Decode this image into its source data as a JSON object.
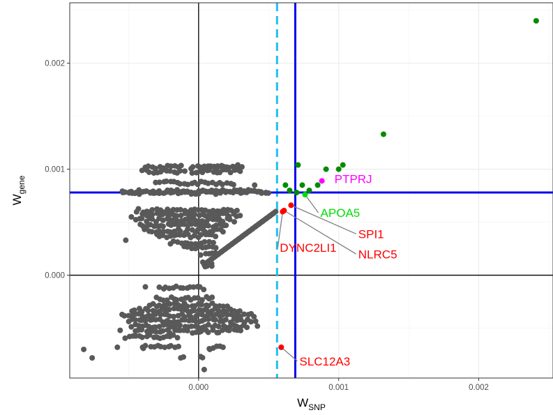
{
  "chart_data": {
    "type": "scatter",
    "title": "",
    "xlabel": {
      "main": "W",
      "sub": "SNP"
    },
    "ylabel": {
      "main": "W",
      "sub": "gene"
    },
    "xlim": [
      -0.00092,
      0.00253
    ],
    "ylim": [
      -0.00097,
      0.00257
    ],
    "x_ticks": [
      {
        "value": 0.0,
        "label": "0.000"
      },
      {
        "value": 0.001,
        "label": "0.001"
      },
      {
        "value": 0.002,
        "label": "0.002"
      }
    ],
    "y_ticks": [
      {
        "value": 0.0,
        "label": "0.000"
      },
      {
        "value": 0.001,
        "label": "0.001"
      },
      {
        "value": 0.002,
        "label": "0.002"
      }
    ],
    "grid": true,
    "reference_lines": [
      {
        "orientation": "vertical",
        "value": 0.0,
        "color": "#000000",
        "style": "solid"
      },
      {
        "orientation": "horizontal",
        "value": 0.0,
        "color": "#000000",
        "style": "solid"
      },
      {
        "orientation": "vertical",
        "value": 0.00056,
        "color": "#1fbfee",
        "style": "dashed"
      },
      {
        "orientation": "vertical",
        "value": 0.00069,
        "color": "#0000ee",
        "style": "solid"
      },
      {
        "orientation": "horizontal",
        "value": 0.00078,
        "color": "#0000ee",
        "style": "solid"
      }
    ],
    "background_cloud": {
      "color": "#595959",
      "note_counts": "dense cluster of gene points",
      "bands": [
        {
          "y": 0.00102,
          "x_ranges": [
            [
              -0.00038,
              -0.00012
            ],
            [
              -6e-05,
              0.00016
            ],
            [
              2e-05,
              0.00031
            ]
          ]
        },
        {
          "y": 0.00098,
          "x_ranges": [
            [
              -0.0004,
              -0.0001
            ],
            [
              -4e-05,
              0.0003
            ]
          ]
        },
        {
          "y": 0.00087,
          "x_ranges": [
            [
              -0.0003,
              0.00025
            ]
          ]
        },
        {
          "y": 0.00079,
          "x_ranges": [
            [
              -0.00055,
              0.0005
            ]
          ]
        },
        {
          "y": 0.00078,
          "x_ranges": [
            [
              -0.0005,
              0.00045
            ]
          ]
        },
        {
          "y": 0.00061,
          "x_ranges": [
            [
              -0.00045,
              0.00028
            ]
          ]
        },
        {
          "y": 0.00057,
          "x_ranges": [
            [
              -0.0004,
              0.0003
            ]
          ]
        },
        {
          "y": 0.00052,
          "x_ranges": [
            [
              -0.00045,
              0.00025
            ]
          ]
        },
        {
          "y": 0.00047,
          "x_ranges": [
            [
              -0.00042,
              0.0002
            ]
          ]
        },
        {
          "y": 0.00042,
          "x_ranges": [
            [
              -0.00038,
              0.00018
            ]
          ]
        },
        {
          "y": 0.00037,
          "x_ranges": [
            [
              -0.0003,
              0.00012
            ]
          ]
        },
        {
          "y": 0.00031,
          "x_ranges": [
            [
              -0.0002,
              0.0001
            ]
          ]
        },
        {
          "y": 0.00026,
          "x_ranges": [
            [
              -0.0001,
              0.00012
            ]
          ]
        },
        {
          "y": 0.0002,
          "x_ranges": [
            [
              2e-05,
              0.00012
            ]
          ]
        },
        {
          "y": 0.00012,
          "x_ranges": [
            [
              3e-05,
              0.0001
            ]
          ]
        },
        {
          "y": 7e-05,
          "x_ranges": [
            [
              4e-05,
              9e-05
            ]
          ]
        },
        {
          "y": -0.00012,
          "x_ranges": [
            [
              -0.00028,
              4e-05
            ]
          ]
        },
        {
          "y": -0.00022,
          "x_ranges": [
            [
              -0.0003,
              0.0001
            ]
          ]
        },
        {
          "y": -0.00028,
          "x_ranges": [
            [
              -0.00035,
              0.0002
            ]
          ]
        },
        {
          "y": -0.00033,
          "x_ranges": [
            [
              -0.00048,
              0.0003
            ]
          ]
        },
        {
          "y": -0.00038,
          "x_ranges": [
            [
              -0.00055,
              0.0004
            ]
          ]
        },
        {
          "y": -0.00043,
          "x_ranges": [
            [
              -0.0005,
              0.0004
            ]
          ]
        },
        {
          "y": -0.00048,
          "x_ranges": [
            [
              -0.00048,
              0.00035
            ]
          ]
        },
        {
          "y": -0.00053,
          "x_ranges": [
            [
              -0.00045,
              0.0003
            ]
          ]
        },
        {
          "y": -0.00058,
          "x_ranges": [
            [
              -0.00052,
              -0.00015
            ]
          ]
        },
        {
          "y": -0.00068,
          "x_ranges": [
            [
              -0.0004,
              -0.00014
            ],
            [
              8e-05,
              0.00018
            ]
          ]
        },
        {
          "y": -0.00078,
          "x_ranges": [
            [
              -0.00013,
              -0.00011
            ],
            [
              1e-05,
              3e-05
            ]
          ]
        }
      ],
      "diagonal": {
        "from": [
          6e-05,
          0.00012
        ],
        "to": [
          0.00055,
          0.0006
        ],
        "count": 40
      },
      "extras": [
        [
          -0.00076,
          -0.00078
        ],
        [
          -0.00082,
          -0.0007
        ],
        [
          -0.00056,
          -0.00052
        ],
        [
          -0.00058,
          -0.00068
        ],
        [
          -0.00038,
          -0.00011
        ],
        [
          -0.00052,
          0.00033
        ],
        [
          -0.00048,
          0.00055
        ],
        [
          -0.00054,
          0.00078
        ],
        [
          0.00048,
          0.00078
        ],
        [
          0.0004,
          0.00085
        ],
        [
          0.00028,
          0.00104
        ],
        [
          0.0002,
          0.00102
        ],
        [
          0.00042,
          -0.00048
        ],
        [
          -0.0004,
          -0.00068
        ],
        [
          4e-05,
          -0.00089
        ],
        [
          8e-05,
          -0.0007
        ]
      ]
    },
    "highlighted_points": [
      {
        "x": 0.00241,
        "y": 0.0024,
        "color": "#008b00"
      },
      {
        "x": 0.00132,
        "y": 0.00133,
        "color": "#008b00"
      },
      {
        "x": 0.00071,
        "y": 0.00104,
        "color": "#008b00"
      },
      {
        "x": 0.00091,
        "y": 0.001,
        "color": "#008b00"
      },
      {
        "x": 0.001,
        "y": 0.001,
        "color": "#008b00"
      },
      {
        "x": 0.00103,
        "y": 0.00104,
        "color": "#008b00"
      },
      {
        "x": 0.00062,
        "y": 0.00085,
        "color": "#008b00"
      },
      {
        "x": 0.00074,
        "y": 0.00085,
        "color": "#008b00"
      },
      {
        "x": 0.00085,
        "y": 0.00085,
        "color": "#008b00"
      },
      {
        "x": 0.00065,
        "y": 0.0008,
        "color": "#008b00"
      },
      {
        "x": 0.00079,
        "y": 0.0008,
        "color": "#008b00"
      },
      {
        "x": 0.0007,
        "y": 0.00078,
        "color": "#008b00"
      },
      {
        "x": 0.00088,
        "y": 0.00089,
        "color": "#ff00ff"
      },
      {
        "x": 0.00076,
        "y": 0.00076,
        "color": "#00e000"
      },
      {
        "x": 0.00066,
        "y": 0.00066,
        "color": "#ff0000"
      },
      {
        "x": 0.00061,
        "y": 0.00061,
        "color": "#ff0000"
      },
      {
        "x": 0.0006,
        "y": 0.0006,
        "color": "#ff0000"
      },
      {
        "x": 0.00059,
        "y": -0.00068,
        "color": "#ff0000"
      }
    ],
    "annotations": [
      {
        "text": "PTPRJ",
        "color": "#ff00ff",
        "point": [
          0.00088,
          0.00089
        ],
        "label_at": [
          0.00097,
          0.00087
        ],
        "anchor": "start",
        "leader": false
      },
      {
        "text": "APOA5",
        "color": "#00e000",
        "point": [
          0.00076,
          0.00076
        ],
        "label_at": [
          0.00087,
          0.00055
        ],
        "anchor": "start",
        "leader": true
      },
      {
        "text": "SPI1",
        "color": "#ff0000",
        "point": [
          0.00066,
          0.00066
        ],
        "label_at": [
          0.00114,
          0.00035
        ],
        "anchor": "start",
        "leader": true
      },
      {
        "text": "NLRC5",
        "color": "#ff0000",
        "point": [
          0.00061,
          0.00061
        ],
        "label_at": [
          0.00114,
          0.00016
        ],
        "anchor": "start",
        "leader": true
      },
      {
        "text": "DYNC2LI1",
        "color": "#ff0000",
        "point": [
          0.0006,
          0.0006
        ],
        "label_at": [
          0.00058,
          0.00022
        ],
        "anchor": "start",
        "leader": true
      },
      {
        "text": "SLC12A3",
        "color": "#ff0000",
        "point": [
          0.00059,
          -0.00068
        ],
        "label_at": [
          0.00072,
          -0.00085
        ],
        "anchor": "start",
        "leader": true
      }
    ],
    "colors": {
      "background_points": "#595959",
      "grid_major": "#ebebeb",
      "grid_minor": "#f4f4f4",
      "panel_border": "#333333"
    }
  }
}
